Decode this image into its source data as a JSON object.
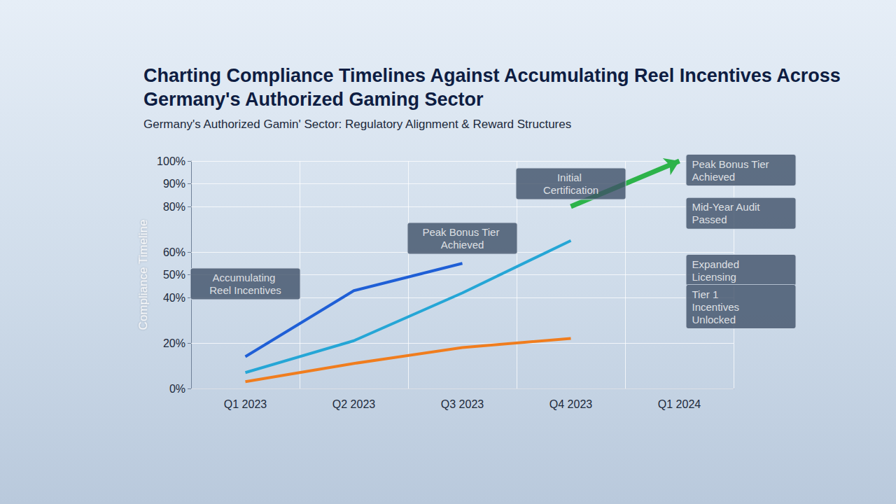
{
  "chart_data": {
    "type": "line",
    "title": "Charting Compliance Timelines Against Accumulating Reel Incentives Across Germany's Authorized Gaming Sector",
    "subtitle": "Germany's Authorized Gamin' Sector: Regulatory Alignment & Reward Structures",
    "y_label": "Compliance Timeline",
    "categories": [
      "Q1 2023",
      "Q2 2023",
      "Q3 2023",
      "Q4 2023",
      "Q1 2024"
    ],
    "series": [
      {
        "color": "#1f5fd6",
        "values": [
          14,
          43,
          55,
          null,
          null
        ],
        "marker": "none"
      },
      {
        "color": "#25a6d6",
        "values": [
          7,
          21,
          42,
          65,
          null
        ],
        "marker": "none"
      },
      {
        "color": "#f07d1e",
        "values": [
          3,
          11,
          18,
          22,
          null
        ],
        "marker": "none"
      },
      {
        "color": "#2db34a",
        "values": [
          null,
          null,
          null,
          80,
          100
        ],
        "marker": "arrow"
      }
    ],
    "ylim": [
      0,
      100
    ],
    "yticks": [
      {
        "value": 0,
        "label": "0%"
      },
      {
        "value": 20,
        "label": "20%"
      },
      {
        "value": 40,
        "label": "40%"
      },
      {
        "value": 50,
        "label": "50%"
      },
      {
        "value": 60,
        "label": "60%"
      },
      {
        "value": 80,
        "label": "80%"
      },
      {
        "value": 90,
        "label": "90%"
      },
      {
        "value": 100,
        "label": "100%"
      }
    ],
    "grid": true,
    "annotations": [
      {
        "text": "Accumulating Reel Incentives",
        "x": "Q1 2023",
        "y": 46
      },
      {
        "text": "Peak Bonus Tier Achieved",
        "x": "Q3 2023",
        "y": 66
      },
      {
        "text": "Initial Certification",
        "x": "Q4 2023",
        "y": 90
      },
      {
        "text": "Peak Bonus Tier Achieved",
        "x": "Q1 2024",
        "y": 96
      },
      {
        "text": "Mid-Year Audit Passed",
        "x": "Q1 2024",
        "y": 77
      },
      {
        "text": "Expanded Licensing",
        "x": "Q1 2024",
        "y": 52
      },
      {
        "text": "Tier 1 Incentives Unlocked",
        "x": "Q1 2024",
        "y": 36
      }
    ]
  }
}
